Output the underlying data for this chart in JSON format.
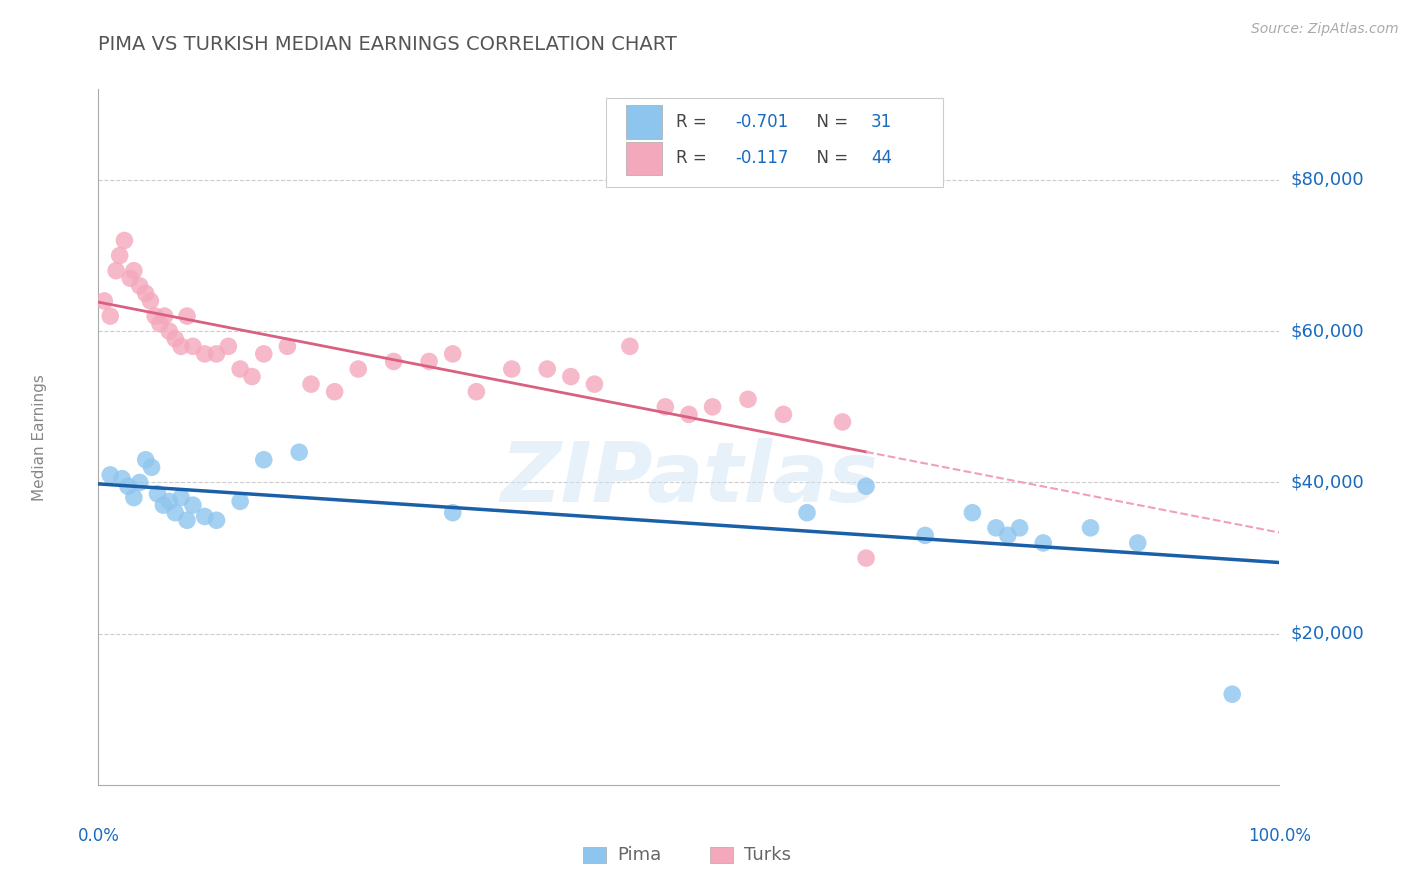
{
  "title": "PIMA VS TURKISH MEDIAN EARNINGS CORRELATION CHART",
  "source": "Source: ZipAtlas.com",
  "ylabel": "Median Earnings",
  "ytick_labels": [
    "$20,000",
    "$40,000",
    "$60,000",
    "$80,000"
  ],
  "ytick_values": [
    20000,
    40000,
    60000,
    80000
  ],
  "ymin": 0,
  "ymax": 92000,
  "xmin": 0.0,
  "xmax": 1.0,
  "pima_color": "#8ec5ee",
  "turks_color": "#f4a8bc",
  "pima_line_color": "#1a5fa8",
  "turks_line_color": "#d96080",
  "turks_dash_color": "#f0a0b8",
  "grid_color": "#cccccc",
  "spine_color": "#aaaaaa",
  "watermark": "ZIPatlas",
  "pima_x": [
    0.01,
    0.02,
    0.025,
    0.03,
    0.035,
    0.04,
    0.045,
    0.05,
    0.055,
    0.06,
    0.065,
    0.07,
    0.075,
    0.08,
    0.09,
    0.1,
    0.12,
    0.14,
    0.17,
    0.3,
    0.6,
    0.65,
    0.7,
    0.74,
    0.76,
    0.77,
    0.78,
    0.8,
    0.84,
    0.88,
    0.96
  ],
  "pima_y": [
    41000,
    40500,
    39500,
    38000,
    40000,
    43000,
    42000,
    38500,
    37000,
    37500,
    36000,
    38000,
    35000,
    37000,
    35500,
    35000,
    37500,
    43000,
    44000,
    36000,
    36000,
    39500,
    33000,
    36000,
    34000,
    33000,
    34000,
    32000,
    34000,
    32000,
    12000
  ],
  "turks_x": [
    0.005,
    0.01,
    0.015,
    0.018,
    0.022,
    0.027,
    0.03,
    0.035,
    0.04,
    0.044,
    0.048,
    0.052,
    0.056,
    0.06,
    0.065,
    0.07,
    0.075,
    0.08,
    0.09,
    0.1,
    0.11,
    0.12,
    0.13,
    0.14,
    0.16,
    0.18,
    0.2,
    0.22,
    0.25,
    0.28,
    0.3,
    0.32,
    0.35,
    0.38,
    0.4,
    0.42,
    0.45,
    0.48,
    0.5,
    0.52,
    0.55,
    0.58,
    0.63,
    0.65
  ],
  "turks_y": [
    64000,
    62000,
    68000,
    70000,
    72000,
    67000,
    68000,
    66000,
    65000,
    64000,
    62000,
    61000,
    62000,
    60000,
    59000,
    58000,
    62000,
    58000,
    57000,
    57000,
    58000,
    55000,
    54000,
    57000,
    58000,
    53000,
    52000,
    55000,
    56000,
    56000,
    57000,
    52000,
    55000,
    55000,
    54000,
    53000,
    58000,
    50000,
    49000,
    50000,
    51000,
    49000,
    48000,
    30000
  ]
}
